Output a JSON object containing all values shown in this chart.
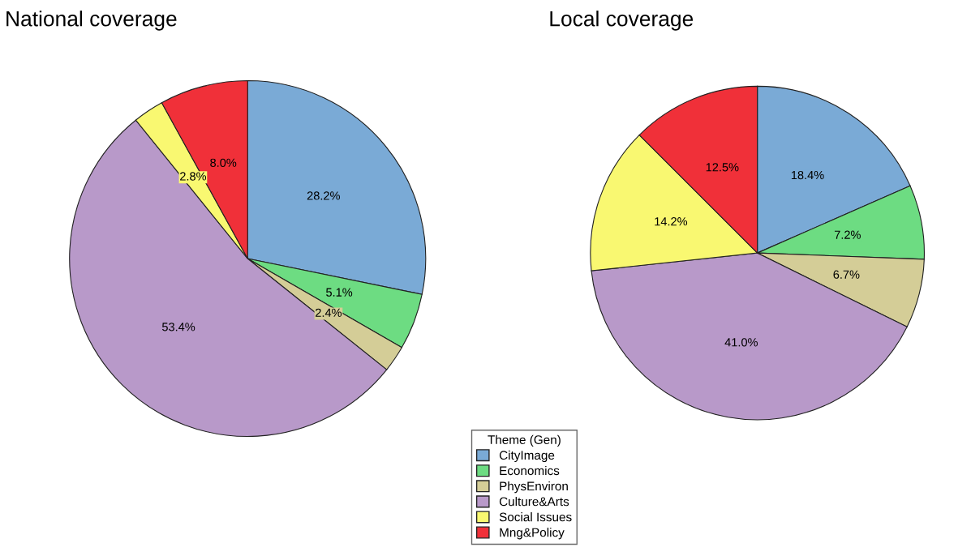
{
  "chart_data": [
    {
      "type": "pie",
      "title": "National coverage",
      "legend_title": "Theme (Gen)",
      "legend": "bottom",
      "categories": [
        "CityImage",
        "Economics",
        "PhysEnviron",
        "Culture&Arts",
        "Social Issues",
        "Mng&Policy"
      ],
      "values": [
        28.2,
        5.1,
        2.4,
        53.4,
        2.8,
        8.0
      ],
      "value_labels": [
        "28.2%",
        "5.1%",
        "2.4%",
        "53.4%",
        "2.8%",
        "8.0%"
      ],
      "colors": [
        "#7aaad6",
        "#6ddc82",
        "#d4cd97",
        "#b899c9",
        "#f9f871",
        "#f03039"
      ]
    },
    {
      "type": "pie",
      "title": "Local coverage",
      "categories": [
        null,
        null,
        null,
        null,
        null,
        null
      ],
      "values": [
        18.4,
        7.2,
        6.7,
        41.0,
        14.2,
        12.5
      ],
      "value_labels": [
        "18.4%",
        "7.2%",
        "6.7%",
        "41.0%",
        "14.2%",
        "12.5%"
      ],
      "colors": [
        "#7aaad6",
        "#6ddc82",
        "#d4cd97",
        "#b899c9",
        "#f9f871",
        "#f03039"
      ]
    }
  ]
}
